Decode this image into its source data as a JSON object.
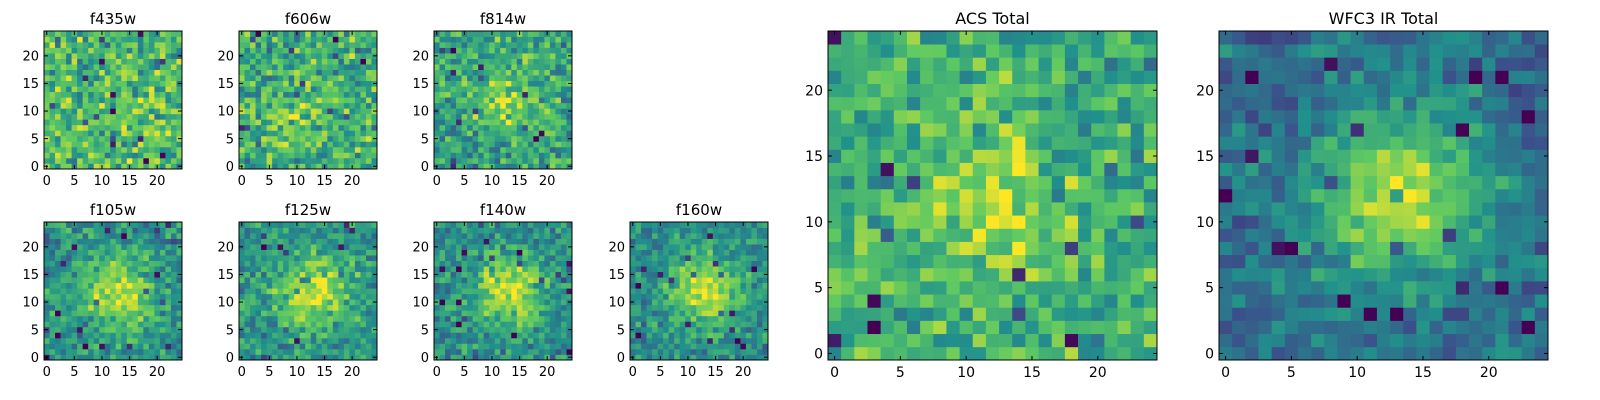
{
  "colormap": {
    "name": "viridis",
    "stops": [
      "#440154",
      "#3b528b",
      "#21918c",
      "#5ec962",
      "#fde725"
    ]
  },
  "colors": {
    "axis": "#000000",
    "background": "#ffffff"
  },
  "chart_data": [
    {
      "type": "heatmap",
      "title": "f435w",
      "grid_size": 25,
      "xlim": [
        -0.5,
        24.5
      ],
      "ylim": [
        -0.5,
        24.5
      ],
      "xticks": [
        0,
        5,
        10,
        15,
        20
      ],
      "yticks": [
        0,
        5,
        10,
        15,
        20
      ],
      "peak_center": [
        12,
        12
      ],
      "peak_amplitude": 0.0,
      "peak_width": 4,
      "base_level": 0.68,
      "noise_level": 0.34
    },
    {
      "type": "heatmap",
      "title": "f606w",
      "grid_size": 25,
      "xlim": [
        -0.5,
        24.5
      ],
      "ylim": [
        -0.5,
        24.5
      ],
      "xticks": [
        0,
        5,
        10,
        15,
        20
      ],
      "yticks": [
        0,
        5,
        10,
        15,
        20
      ],
      "peak_center": [
        10,
        10
      ],
      "peak_amplitude": 0.12,
      "peak_width": 4,
      "base_level": 0.62,
      "noise_level": 0.34
    },
    {
      "type": "heatmap",
      "title": "f814w",
      "grid_size": 25,
      "xlim": [
        -0.5,
        24.5
      ],
      "ylim": [
        -0.5,
        24.5
      ],
      "xticks": [
        0,
        5,
        10,
        15,
        20
      ],
      "yticks": [
        0,
        5,
        10,
        15,
        20
      ],
      "peak_center": [
        12,
        12
      ],
      "peak_amplitude": 0.25,
      "peak_width": 4,
      "base_level": 0.58,
      "noise_level": 0.3
    },
    {
      "type": "heatmap",
      "title": "f105w",
      "grid_size": 25,
      "xlim": [
        -0.5,
        24.5
      ],
      "ylim": [
        -0.5,
        24.5
      ],
      "xticks": [
        0,
        5,
        10,
        15,
        20
      ],
      "yticks": [
        0,
        5,
        10,
        15,
        20
      ],
      "peak_center": [
        13,
        12
      ],
      "peak_amplitude": 0.45,
      "peak_width": 4.5,
      "base_level": 0.5,
      "noise_level": 0.26
    },
    {
      "type": "heatmap",
      "title": "f125w",
      "grid_size": 25,
      "xlim": [
        -0.5,
        24.5
      ],
      "ylim": [
        -0.5,
        24.5
      ],
      "xticks": [
        0,
        5,
        10,
        15,
        20
      ],
      "yticks": [
        0,
        5,
        10,
        15,
        20
      ],
      "peak_center": [
        13,
        12
      ],
      "peak_amplitude": 0.4,
      "peak_width": 4.5,
      "base_level": 0.52,
      "noise_level": 0.26
    },
    {
      "type": "heatmap",
      "title": "f140w",
      "grid_size": 25,
      "xlim": [
        -0.5,
        24.5
      ],
      "ylim": [
        -0.5,
        24.5
      ],
      "xticks": [
        0,
        5,
        10,
        15,
        20
      ],
      "yticks": [
        0,
        5,
        10,
        15,
        20
      ],
      "peak_center": [
        13,
        12
      ],
      "peak_amplitude": 0.45,
      "peak_width": 4.5,
      "base_level": 0.48,
      "noise_level": 0.26
    },
    {
      "type": "heatmap",
      "title": "f160w",
      "grid_size": 25,
      "xlim": [
        -0.5,
        24.5
      ],
      "ylim": [
        -0.5,
        24.5
      ],
      "xticks": [
        0,
        5,
        10,
        15,
        20
      ],
      "yticks": [
        0,
        5,
        10,
        15,
        20
      ],
      "peak_center": [
        13,
        12
      ],
      "peak_amplitude": 0.45,
      "peak_width": 4.5,
      "base_level": 0.48,
      "noise_level": 0.22
    },
    {
      "type": "heatmap",
      "title": "ACS Total",
      "grid_size": 25,
      "xlim": [
        -0.5,
        24.5
      ],
      "ylim": [
        -0.5,
        24.5
      ],
      "xticks": [
        0,
        5,
        10,
        15,
        20
      ],
      "yticks": [
        0,
        5,
        10,
        15,
        20
      ],
      "peak_center": [
        12,
        11
      ],
      "peak_amplitude": 0.22,
      "peak_width": 4.5,
      "base_level": 0.62,
      "noise_level": 0.28
    },
    {
      "type": "heatmap",
      "title": "WFC3 IR Total",
      "grid_size": 25,
      "xlim": [
        -0.5,
        24.5
      ],
      "ylim": [
        -0.5,
        24.5
      ],
      "xticks": [
        0,
        5,
        10,
        15,
        20
      ],
      "yticks": [
        0,
        5,
        10,
        15,
        20
      ],
      "peak_center": [
        13,
        12
      ],
      "peak_amplitude": 0.55,
      "peak_width": 4.5,
      "base_level": 0.36,
      "noise_level": 0.2
    }
  ]
}
